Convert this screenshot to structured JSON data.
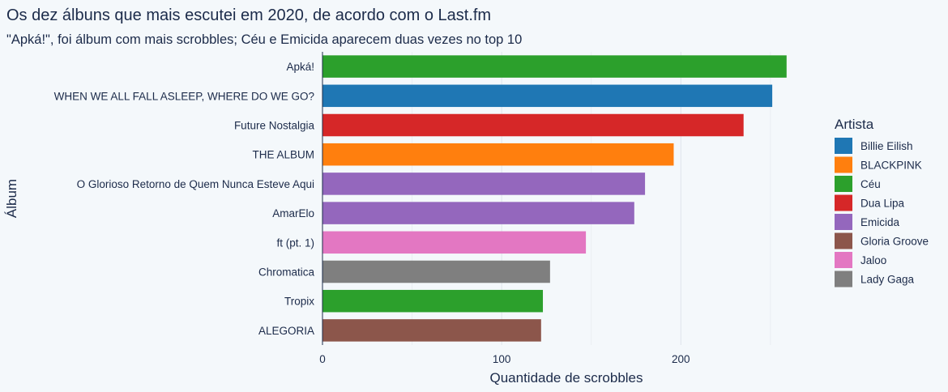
{
  "chart_data": {
    "type": "bar",
    "orientation": "horizontal",
    "title": "Os dez álbuns que mais escutei em 2020, de acordo com o Last.fm",
    "subtitle": "\"Apká!\", foi álbum com mais scrobbles; Céu e Emicida aparecem duas vezes no top 10",
    "xlabel": "Quantidade de scrobbles",
    "ylabel": "Álbum",
    "xlim": [
      0,
      270
    ],
    "xticks": [
      0,
      100,
      200
    ],
    "grid": true,
    "legend_title": "Artista",
    "legend_position": "right",
    "categories": [
      "Apká!",
      "WHEN WE ALL FALL ASLEEP, WHERE DO WE GO?",
      "Future Nostalgia",
      "THE ALBUM",
      "O Glorioso Retorno de Quem Nunca Esteve Aqui",
      "AmarElo",
      "ft (pt. 1)",
      "Chromatica",
      "Tropix",
      "ALEGORIA"
    ],
    "values": [
      259,
      251,
      235,
      196,
      180,
      174,
      147,
      127,
      123,
      122
    ],
    "artists": [
      "Céu",
      "Billie Eilish",
      "Dua Lipa",
      "BLACKPINK",
      "Emicida",
      "Emicida",
      "Jaloo",
      "Lady Gaga",
      "Céu",
      "Gloria Groove"
    ],
    "legend": [
      {
        "name": "Billie Eilish",
        "color": "#1f77b4"
      },
      {
        "name": "BLACKPINK",
        "color": "#ff7f0e"
      },
      {
        "name": "Céu",
        "color": "#2ca02c"
      },
      {
        "name": "Dua Lipa",
        "color": "#d62728"
      },
      {
        "name": "Emicida",
        "color": "#9467bd"
      },
      {
        "name": "Gloria Groove",
        "color": "#8c564b"
      },
      {
        "name": "Jaloo",
        "color": "#e377c2"
      },
      {
        "name": "Lady Gaga",
        "color": "#7f7f7f"
      }
    ]
  }
}
